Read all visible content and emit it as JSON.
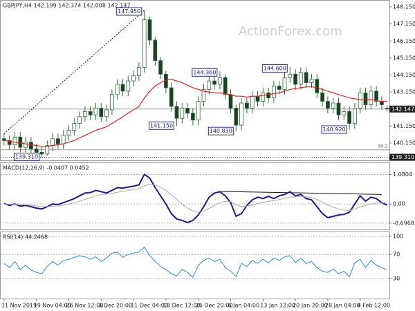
{
  "chart_data": [
    {
      "type": "candlestick",
      "title": "GBPJPY,H4 142.199 142.374 142.008 142.147",
      "watermark": "ActionForex.com",
      "categories": [
        "11 Nov 2019",
        null,
        null,
        null,
        null,
        null,
        "19 Nov 04:00",
        null,
        null,
        null,
        null,
        null,
        "26 Nov 12:00",
        null,
        null,
        null,
        null,
        null,
        "3 Dec 20:00",
        null,
        null,
        null,
        null,
        null,
        "11 Dec 04:00",
        null,
        null,
        null,
        null,
        null,
        "18 Dec 12:00",
        null,
        null,
        null,
        null,
        null,
        "26 Dec 20:00",
        null,
        null,
        null,
        null,
        null,
        "6 Jan 04:00",
        null,
        null,
        null,
        null,
        null,
        "13 Jan 12:00",
        null,
        null,
        null,
        null,
        null,
        "20 Jan 20:00",
        null,
        null,
        null,
        null,
        null,
        "28 Jan 04:00",
        null,
        null,
        null,
        null,
        null,
        "4 Feb 12:00",
        null,
        null,
        null,
        null,
        null
      ],
      "open": [
        140.4,
        140.3,
        140.05,
        140.5,
        139.9,
        140.2,
        139.8,
        139.6,
        139.5,
        140.0,
        140.4,
        140.1,
        140.6,
        140.9,
        141.3,
        141.7,
        142.0,
        141.8,
        142.2,
        141.7,
        142.1,
        143.0,
        143.6,
        143.2,
        143.8,
        144.1,
        144.6,
        147.4,
        146.2,
        145.0,
        144.2,
        143.4,
        142.3,
        141.6,
        142.2,
        141.9,
        141.5,
        142.6,
        143.3,
        143.8,
        143.6,
        144.0,
        143.0,
        142.2,
        141.2,
        142.5,
        142.2,
        142.9,
        142.6,
        143.1,
        142.8,
        143.5,
        143.3,
        144.0,
        144.2,
        143.6,
        144.3,
        143.7,
        143.9,
        143.1,
        142.6,
        142.2,
        142.5,
        141.8,
        142.0,
        141.3,
        142.2,
        143.1,
        142.4,
        143.2,
        142.6,
        142.199
      ],
      "high": [
        140.7,
        140.6,
        140.8,
        140.8,
        140.5,
        140.5,
        140.1,
        139.9,
        140.3,
        140.7,
        140.7,
        140.9,
        141.2,
        141.6,
        142.0,
        142.3,
        142.3,
        142.5,
        142.5,
        142.4,
        143.3,
        143.9,
        143.9,
        144.1,
        144.4,
        144.9,
        147.95,
        147.6,
        146.4,
        145.2,
        144.4,
        143.7,
        142.6,
        142.5,
        142.5,
        142.2,
        142.9,
        143.6,
        144.1,
        144.1,
        144.36,
        144.2,
        143.3,
        142.4,
        142.8,
        142.8,
        143.2,
        143.2,
        143.4,
        143.4,
        143.8,
        143.8,
        144.3,
        144.6,
        144.5,
        144.6,
        144.6,
        144.2,
        144.2,
        143.4,
        142.9,
        142.8,
        142.8,
        142.3,
        142.3,
        142.5,
        143.4,
        143.4,
        143.5,
        143.5,
        142.9,
        142.374
      ],
      "low": [
        140.0,
        139.75,
        139.75,
        139.6,
        139.6,
        139.5,
        139.4,
        139.31,
        139.4,
        139.7,
        139.8,
        139.8,
        140.3,
        140.6,
        141.0,
        141.4,
        141.5,
        141.5,
        141.4,
        141.4,
        141.8,
        142.7,
        142.9,
        142.9,
        143.5,
        143.8,
        144.3,
        145.9,
        144.7,
        143.9,
        143.1,
        142.0,
        141.15,
        141.3,
        141.6,
        141.2,
        141.2,
        142.3,
        143.0,
        143.3,
        143.3,
        142.7,
        141.9,
        140.83,
        140.9,
        141.9,
        141.9,
        142.3,
        142.3,
        142.5,
        142.5,
        143.0,
        143.0,
        143.7,
        143.3,
        143.3,
        143.4,
        143.4,
        142.8,
        142.3,
        141.9,
        141.9,
        141.5,
        141.5,
        140.92,
        141.0,
        141.9,
        142.1,
        142.1,
        142.3,
        142.1,
        142.008
      ],
      "close": [
        140.3,
        140.05,
        140.5,
        139.9,
        140.2,
        139.8,
        139.6,
        139.5,
        140.0,
        140.4,
        140.1,
        140.6,
        140.9,
        141.3,
        141.7,
        142.0,
        141.8,
        142.2,
        141.7,
        142.1,
        143.0,
        143.6,
        143.2,
        143.8,
        144.1,
        144.6,
        147.4,
        146.2,
        145.0,
        144.2,
        143.4,
        142.3,
        141.6,
        142.2,
        141.9,
        141.5,
        142.6,
        143.3,
        143.8,
        143.6,
        144.0,
        143.0,
        142.2,
        141.2,
        142.5,
        142.2,
        142.9,
        142.6,
        143.1,
        142.8,
        143.5,
        143.3,
        144.0,
        144.2,
        143.6,
        144.3,
        143.7,
        143.9,
        143.1,
        142.6,
        142.2,
        142.5,
        141.8,
        142.0,
        141.3,
        142.2,
        143.1,
        142.4,
        143.2,
        142.6,
        142.4,
        142.147
      ],
      "up_color": "#ffffff",
      "down_color": "#1f3d26",
      "candle_stroke": "#2f6b3a",
      "series": [
        {
          "color": "#e02020",
          "values": [
            140.3,
            140.25,
            140.2,
            140.15,
            140.1,
            140.05,
            140.0,
            139.95,
            139.95,
            140.0,
            140.05,
            140.1,
            140.2,
            140.3,
            140.45,
            140.6,
            140.75,
            140.9,
            141.0,
            141.1,
            141.3,
            141.5,
            141.7,
            141.9,
            142.1,
            142.3,
            142.8,
            143.2,
            143.5,
            143.7,
            143.85,
            143.9,
            143.8,
            143.7,
            143.55,
            143.4,
            143.3,
            143.2,
            143.15,
            143.1,
            143.1,
            143.05,
            143.0,
            142.9,
            142.9,
            142.85,
            142.9,
            142.9,
            142.95,
            143.0,
            143.05,
            143.1,
            143.2,
            143.3,
            143.35,
            143.4,
            143.45,
            143.45,
            143.4,
            143.3,
            143.2,
            143.1,
            143.0,
            142.9,
            142.8,
            142.75,
            142.7,
            142.7,
            142.7,
            142.65,
            142.6,
            142.6
          ]
        }
      ],
      "ylim": [
        139.13,
        148.56
      ],
      "yticks": [
        {
          "value": 148.15,
          "label": "148.150"
        },
        {
          "value": 147.15,
          "label": "147.150"
        },
        {
          "value": 146.15,
          "label": "146.150"
        },
        {
          "value": 145.15,
          "label": "145.150"
        },
        {
          "value": 144.15,
          "label": "144.150"
        },
        {
          "value": 143.15,
          "label": "143.150"
        },
        {
          "value": 141.15,
          "label": "141.150"
        },
        {
          "value": 140.15,
          "label": "140.150"
        }
      ],
      "callouts": [
        {
          "index": 26,
          "value": 147.95,
          "label": "147.950"
        },
        {
          "index": 40,
          "value": 144.36,
          "label": "144.360"
        },
        {
          "index": 53,
          "value": 144.6,
          "label": "144.600"
        },
        {
          "index": 32,
          "value": 141.15,
          "label": "141.150"
        },
        {
          "index": 43,
          "value": 140.83,
          "label": "140.830"
        },
        {
          "index": 64,
          "value": 140.92,
          "label": "140.920"
        },
        {
          "index": 7,
          "value": 139.31,
          "label": "139.310"
        }
      ],
      "levels": [
        {
          "value": 142.147,
          "label": "142.147",
          "style": "current"
        },
        {
          "value": 139.31,
          "label": "139.310",
          "style": "support"
        },
        {
          "value": 139.75,
          "label": "38.2",
          "style": "fib"
        }
      ],
      "trendlines": [
        {
          "x": [
            0,
            26
          ],
          "y": [
            140.7,
            147.95
          ],
          "dash": "2,2"
        }
      ]
    },
    {
      "type": "line",
      "title": "MACD(12,26,9) -0.0407 0.0452",
      "series": [
        {
          "color": "#1a1a8c",
          "width": 2,
          "values": [
            0.02,
            -0.05,
            0.0,
            -0.08,
            -0.05,
            -0.1,
            -0.15,
            -0.18,
            -0.1,
            0.0,
            -0.02,
            0.05,
            0.12,
            0.2,
            0.3,
            0.4,
            0.42,
            0.5,
            0.45,
            0.4,
            0.5,
            0.6,
            0.58,
            0.62,
            0.65,
            0.7,
            1.08,
            0.95,
            0.6,
            0.3,
            0.0,
            -0.35,
            -0.55,
            -0.6,
            -0.68,
            -0.6,
            -0.4,
            -0.1,
            0.25,
            0.4,
            0.45,
            0.3,
            0.05,
            -0.45,
            -0.35,
            -0.05,
            0.15,
            0.25,
            0.2,
            0.28,
            0.2,
            0.3,
            0.35,
            0.45,
            0.3,
            0.35,
            0.2,
            0.15,
            -0.1,
            -0.35,
            -0.5,
            -0.45,
            -0.4,
            -0.38,
            -0.3,
            0.0,
            0.3,
            0.1,
            0.25,
            0.2,
            0.05,
            -0.0407
          ]
        },
        {
          "color": "#aaaaaa",
          "width": 1,
          "values": [
            0.0,
            -0.01,
            -0.01,
            -0.03,
            -0.03,
            -0.05,
            -0.07,
            -0.1,
            -0.1,
            -0.08,
            -0.07,
            -0.04,
            0.0,
            0.05,
            0.1,
            0.17,
            0.23,
            0.3,
            0.34,
            0.36,
            0.39,
            0.43,
            0.46,
            0.5,
            0.53,
            0.56,
            0.66,
            0.72,
            0.7,
            0.62,
            0.5,
            0.33,
            0.16,
            0.0,
            -0.15,
            -0.25,
            -0.3,
            -0.26,
            -0.16,
            -0.05,
            0.05,
            0.1,
            0.09,
            -0.02,
            -0.09,
            -0.08,
            -0.04,
            0.02,
            0.06,
            0.1,
            0.12,
            0.16,
            0.2,
            0.25,
            0.26,
            0.28,
            0.26,
            0.24,
            0.17,
            0.07,
            -0.04,
            -0.12,
            -0.18,
            -0.22,
            -0.24,
            -0.19,
            -0.1,
            -0.06,
            0.0,
            0.04,
            0.04,
            0.0452
          ]
        }
      ],
      "ylim": [
        -0.93,
        1.52
      ],
      "yticks": [
        1.0804,
        {
          "value": 0,
          "label": "0.00"
        },
        -0.6968
      ],
      "grid": "dashed",
      "trendlines": [
        {
          "x": [
            40,
            70
          ],
          "y": [
            0.46,
            0.35
          ],
          "dash": "none"
        }
      ]
    },
    {
      "type": "line",
      "title": "RSI(14) 44.2468",
      "series": [
        {
          "color": "#2a8ad4",
          "width": 1,
          "values": [
            55,
            48,
            58,
            45,
            52,
            44,
            40,
            38,
            50,
            58,
            52,
            60,
            62,
            65,
            68,
            66,
            62,
            66,
            58,
            64,
            72,
            74,
            65,
            70,
            72,
            74,
            82,
            68,
            58,
            50,
            45,
            38,
            34,
            45,
            40,
            32,
            52,
            60,
            64,
            58,
            62,
            48,
            42,
            33,
            55,
            50,
            60,
            55,
            62,
            56,
            64,
            60,
            66,
            68,
            56,
            64,
            55,
            58,
            48,
            42,
            40,
            46,
            38,
            42,
            33,
            56,
            62,
            48,
            60,
            52,
            48,
            44.2468
          ]
        }
      ],
      "ylim": [
        -3.4,
        108
      ],
      "yticks": [
        100,
        70,
        30
      ],
      "grid": "dashed"
    }
  ]
}
